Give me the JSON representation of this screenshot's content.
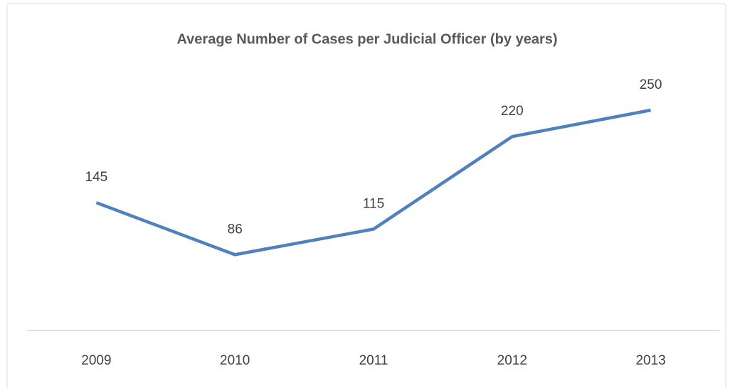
{
  "chart_data": {
    "type": "line",
    "title": "Average Number of Cases per Judicial Officer (by years)",
    "categories": [
      "2009",
      "2010",
      "2011",
      "2012",
      "2013"
    ],
    "values": [
      145,
      86,
      115,
      220,
      250
    ],
    "color": "#4f81bd",
    "ylim": [
      0,
      300
    ]
  }
}
